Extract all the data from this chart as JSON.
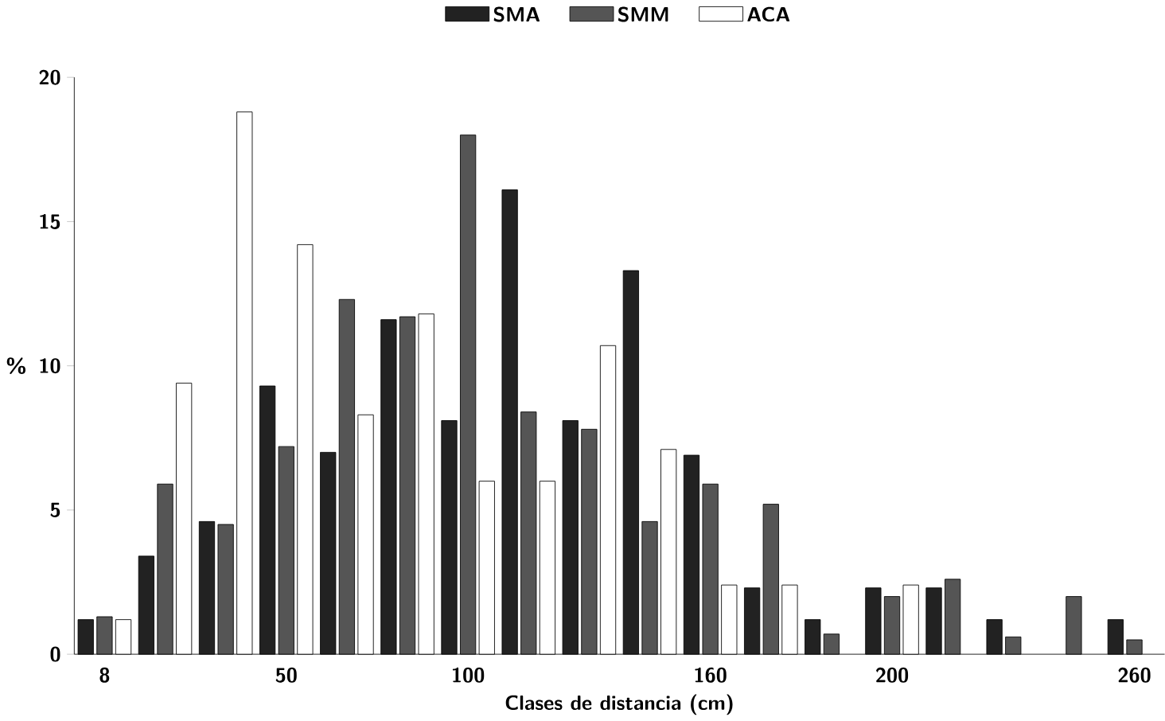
{
  "chart_data": {
    "type": "bar",
    "xlabel": "Clases de distancia (cm)",
    "ylabel": "%",
    "categories": [
      "8",
      null,
      null,
      "50",
      null,
      null,
      "100",
      null,
      null,
      null,
      "160",
      null,
      null,
      "200",
      null,
      null,
      null,
      "260"
    ],
    "series": [
      {
        "name": "SMA",
        "color": "#222222",
        "values": [
          1.2,
          3.4,
          4.6,
          9.3,
          7.0,
          11.6,
          8.1,
          16.1,
          8.1,
          13.3,
          6.9,
          2.3,
          1.2,
          2.3,
          2.3,
          1.2,
          null,
          1.2
        ]
      },
      {
        "name": "SMM",
        "color": "#555555",
        "values": [
          1.3,
          5.9,
          4.5,
          7.2,
          12.3,
          11.7,
          18.0,
          8.4,
          7.8,
          4.6,
          5.9,
          5.2,
          0.7,
          2.0,
          2.6,
          0.6,
          2.0,
          0.5
        ]
      },
      {
        "name": "ACA",
        "color": "#ffffff",
        "values": [
          1.2,
          9.4,
          18.8,
          14.2,
          8.3,
          11.8,
          6.0,
          6.0,
          10.7,
          7.1,
          2.4,
          2.4,
          null,
          2.4,
          null,
          null,
          null,
          null
        ]
      }
    ],
    "ylim": [
      0,
      20
    ],
    "yticks": [
      0,
      5,
      10,
      15,
      20
    ],
    "grid": false,
    "legend": "top"
  }
}
